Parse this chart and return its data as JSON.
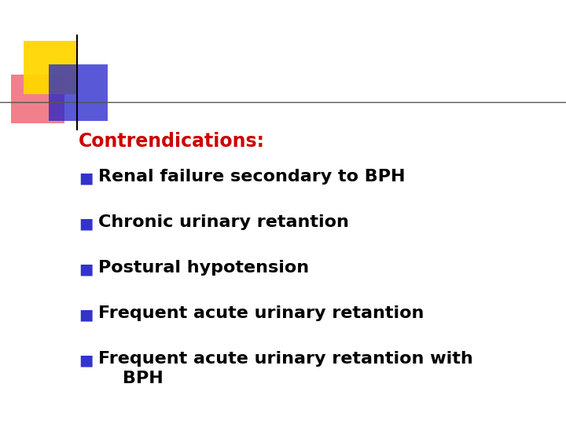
{
  "title": "Contrendications:",
  "title_color": "#cc0000",
  "title_fontsize": 17,
  "bullet_color": "#3333cc",
  "bullet_char": "■",
  "items": [
    "Renal failure secondary to BPH",
    "Chronic urinary retantion",
    "Postural hypotension",
    "Frequent acute urinary retantion",
    "Frequent acute urinary retantion with\n    BPH"
  ],
  "item_fontsize": 16,
  "text_color": "#000000",
  "bg_color": "#ffffff",
  "logo_yellow": "#FFD700",
  "logo_pink": "#ee5566",
  "logo_blue": "#2222cc",
  "line_color": "#555555"
}
